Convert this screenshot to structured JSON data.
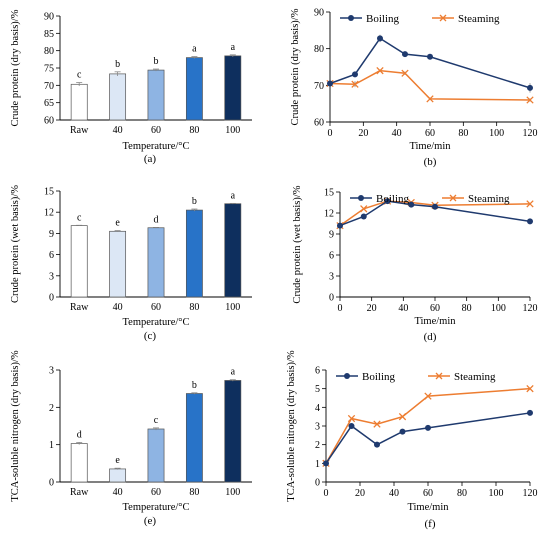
{
  "figure": {
    "panel_labels": [
      "(a)",
      "(b)",
      "(c)",
      "(d)",
      "(e)",
      "(f)"
    ]
  },
  "colors": {
    "raw": "#ffffff",
    "t40": "#dce7f5",
    "t60": "#8eb4e3",
    "t80": "#2873c8",
    "t100": "#0e2f5e",
    "boiling": "#1f3a6e",
    "steaming": "#ed7d31",
    "error_bar": "#888888"
  },
  "chart_data": [
    {
      "panel": "(a)",
      "type": "bar",
      "categories": [
        "Raw",
        "40",
        "60",
        "80",
        "100"
      ],
      "values": [
        70.3,
        73.3,
        74.4,
        78.0,
        78.5
      ],
      "errors": [
        0.5,
        0.6,
        0.3,
        0.3,
        0.3
      ],
      "significance": [
        "c",
        "b",
        "b",
        "a",
        "a"
      ],
      "xlabel": "Temperature/°C",
      "ylabel": "Crude protein (dry basis)/%",
      "ylim": [
        60,
        90
      ],
      "yticks": [
        60,
        65,
        70,
        75,
        80,
        85,
        90
      ]
    },
    {
      "panel": "(b)",
      "type": "line",
      "x": [
        0,
        15,
        30,
        45,
        60,
        120
      ],
      "series": [
        {
          "name": "Boiling",
          "values": [
            70.5,
            73.0,
            82.8,
            78.5,
            77.8,
            69.3
          ],
          "errors": [
            0.6,
            0.4,
            1.0,
            0.3,
            0.3,
            1.3
          ]
        },
        {
          "name": "Steaming",
          "values": [
            70.5,
            70.3,
            74.0,
            73.3,
            66.3,
            66.0
          ],
          "errors": [
            0.4,
            0.8,
            0.3,
            0.4,
            0.3,
            0.4
          ]
        }
      ],
      "xlabel": "Time/min",
      "ylabel": "Crude protein (dry basis)/%",
      "xlim": [
        0,
        120
      ],
      "xticks": [
        0,
        20,
        40,
        60,
        80,
        100,
        120
      ],
      "ylim": [
        60,
        90
      ],
      "yticks": [
        60,
        70,
        80,
        90
      ],
      "legend": "top"
    },
    {
      "panel": "(c)",
      "type": "bar",
      "categories": [
        "Raw",
        "40",
        "60",
        "80",
        "100"
      ],
      "values": [
        10.1,
        9.3,
        9.8,
        12.3,
        13.2
      ],
      "errors": [
        0.05,
        0.1,
        0.05,
        0.15,
        0.05
      ],
      "significance": [
        "c",
        "e",
        "d",
        "b",
        "a"
      ],
      "xlabel": "Temperature/°C",
      "ylabel": "Crude protein (wet basis)/%",
      "ylim": [
        0,
        15
      ],
      "yticks": [
        0,
        3,
        6,
        9,
        12,
        15
      ]
    },
    {
      "panel": "(d)",
      "type": "line",
      "x": [
        0,
        15,
        30,
        45,
        60,
        120
      ],
      "series": [
        {
          "name": "Boiling",
          "values": [
            10.2,
            11.5,
            13.7,
            13.2,
            12.9,
            10.8
          ],
          "errors": [
            0.1,
            0.1,
            0.2,
            0.2,
            0.2,
            0.1
          ]
        },
        {
          "name": "Steaming",
          "values": [
            10.2,
            12.6,
            13.7,
            13.5,
            13.1,
            13.3
          ],
          "errors": [
            0.1,
            0.1,
            0.2,
            0.2,
            0.2,
            0.1
          ]
        }
      ],
      "xlabel": "Time/min",
      "ylabel": "Crude protein (wet basis)/%",
      "xlim": [
        0,
        120
      ],
      "xticks": [
        0,
        20,
        40,
        60,
        80,
        100,
        120
      ],
      "ylim": [
        0,
        15
      ],
      "yticks": [
        0,
        3,
        6,
        9,
        12,
        15
      ],
      "legend": "top"
    },
    {
      "panel": "(e)",
      "type": "bar",
      "categories": [
        "Raw",
        "40",
        "60",
        "80",
        "100"
      ],
      "values": [
        1.03,
        0.35,
        1.42,
        2.37,
        2.72
      ],
      "errors": [
        0.03,
        0.02,
        0.03,
        0.02,
        0.02
      ],
      "significance": [
        "d",
        "e",
        "c",
        "b",
        "a"
      ],
      "xlabel": "Temperature/°C",
      "ylabel": "TCA-soluble nitrogen (dry basis)/%",
      "ylim": [
        0,
        3
      ],
      "yticks": [
        0,
        1,
        2,
        3
      ]
    },
    {
      "panel": "(f)",
      "type": "line",
      "x": [
        0,
        15,
        30,
        45,
        60,
        120
      ],
      "series": [
        {
          "name": "Boiling",
          "values": [
            1.0,
            3.0,
            2.0,
            2.7,
            2.9,
            3.7
          ],
          "errors": [
            0.05,
            0.05,
            0.05,
            0.05,
            0.05,
            0.05
          ]
        },
        {
          "name": "Steaming",
          "values": [
            1.0,
            3.4,
            3.1,
            3.5,
            4.6,
            5.0
          ],
          "errors": [
            0.05,
            0.05,
            0.05,
            0.05,
            0.05,
            0.05
          ]
        }
      ],
      "xlabel": "Time/min",
      "ylabel": "TCA-soluble nitrogen (dry basis)/%",
      "xlim": [
        0,
        120
      ],
      "xticks": [
        0,
        20,
        40,
        60,
        80,
        100,
        120
      ],
      "ylim": [
        0,
        6
      ],
      "yticks": [
        0,
        1,
        2,
        3,
        4,
        5,
        6
      ],
      "legend": "top"
    }
  ]
}
